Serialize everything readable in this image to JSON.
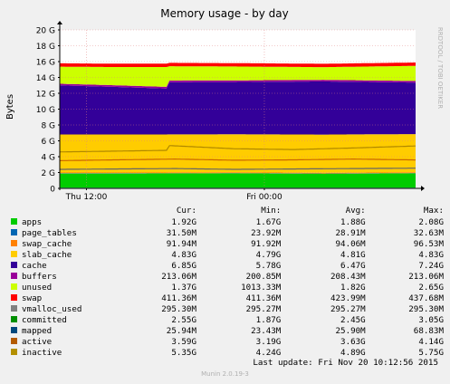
{
  "chart_data": {
    "type": "area",
    "title": "Memory usage - by day",
    "ylabel": "Bytes",
    "side_text": "RRDTOOL / TOBI OETIKER",
    "ylim": [
      0,
      20
    ],
    "yunit": "G",
    "yticks": [
      0,
      2,
      4,
      6,
      8,
      10,
      12,
      14,
      16,
      18,
      20
    ],
    "ytick_labels": [
      "0",
      "2 G",
      "4 G",
      "6 G",
      "8 G",
      "10 G",
      "12 G",
      "14 G",
      "16 G",
      "18 G",
      "20 G"
    ],
    "x_ticks": [
      {
        "label": "Thu 12:00",
        "hour": 12
      },
      {
        "label": "Fri 00:00",
        "hour": 24
      }
    ],
    "x_start_hour": 10.2,
    "x_end_hour": 34.2,
    "stack_series": [
      {
        "name": "apps",
        "color": "#00cc00",
        "x": [
          10.2,
          16,
          22,
          28,
          34.2
        ],
        "values": [
          1.88,
          1.88,
          1.9,
          1.85,
          1.9
        ]
      },
      {
        "name": "page_tables",
        "color": "#0066b3",
        "x": [
          10.2,
          34.2
        ],
        "values": [
          0.029,
          0.029
        ]
      },
      {
        "name": "swap_cache",
        "color": "#ff8000",
        "x": [
          10.2,
          34.2
        ],
        "values": [
          0.092,
          0.092
        ]
      },
      {
        "name": "slab_cache",
        "color": "#ffcc00",
        "x": [
          10.2,
          16,
          22,
          28,
          34.2
        ],
        "values": [
          4.8,
          4.8,
          4.8,
          4.82,
          4.83
        ]
      },
      {
        "name": "cache",
        "color": "#330099",
        "x": [
          10.2,
          14,
          17.4,
          17.6,
          22,
          28,
          34.2
        ],
        "values": [
          6.2,
          6.0,
          5.8,
          6.6,
          6.6,
          6.7,
          6.5
        ]
      },
      {
        "name": "buffers",
        "color": "#990099",
        "x": [
          10.2,
          34.2
        ],
        "values": [
          0.208,
          0.208
        ]
      },
      {
        "name": "unused",
        "color": "#ccff00",
        "x": [
          10.2,
          14,
          17.4,
          17.6,
          22,
          28,
          34.2
        ],
        "values": [
          2.15,
          2.3,
          2.5,
          1.8,
          1.75,
          1.6,
          1.9
        ]
      },
      {
        "name": "swap",
        "color": "#ff0000",
        "x": [
          10.2,
          34.2
        ],
        "values": [
          0.424,
          0.424
        ]
      }
    ],
    "line_series": [
      {
        "name": "committed",
        "color": "#666666",
        "x": [
          10.2,
          14,
          18,
          22,
          26,
          30,
          34.2
        ],
        "values": [
          2.4,
          2.45,
          2.5,
          2.4,
          2.45,
          2.5,
          2.55
        ]
      },
      {
        "name": "mapped",
        "color": "#8fb3e6",
        "x": [
          10.2,
          34.2
        ],
        "values": [
          0.026,
          0.026
        ]
      },
      {
        "name": "active",
        "color": "#cc6600",
        "x": [
          10.2,
          14,
          18,
          22,
          26,
          30,
          34.2
        ],
        "values": [
          3.5,
          3.6,
          3.7,
          3.55,
          3.6,
          3.7,
          3.59
        ]
      },
      {
        "name": "inactive",
        "color": "#b08800",
        "x": [
          10.2,
          14,
          17.4,
          17.6,
          22,
          26,
          30,
          34.2
        ],
        "values": [
          4.6,
          4.7,
          4.8,
          5.4,
          5.0,
          4.9,
          5.1,
          5.35
        ]
      }
    ]
  },
  "legend": {
    "headers": {
      "cur": "Cur:",
      "min": "Min:",
      "avg": "Avg:",
      "max": "Max:"
    },
    "rows": [
      {
        "name": "apps",
        "color": "#00cc00",
        "cur": "1.92G",
        "min": "1.67G",
        "avg": "1.88G",
        "max": "2.08G"
      },
      {
        "name": "page_tables",
        "color": "#0066b3",
        "cur": "31.50M",
        "min": "23.92M",
        "avg": "28.91M",
        "max": "32.63M"
      },
      {
        "name": "swap_cache",
        "color": "#ff8000",
        "cur": "91.94M",
        "min": "91.92M",
        "avg": "94.06M",
        "max": "96.53M"
      },
      {
        "name": "slab_cache",
        "color": "#ffcc00",
        "cur": "4.83G",
        "min": "4.79G",
        "avg": "4.81G",
        "max": "4.83G"
      },
      {
        "name": "cache",
        "color": "#330099",
        "cur": "6.85G",
        "min": "5.78G",
        "avg": "6.47G",
        "max": "7.24G"
      },
      {
        "name": "buffers",
        "color": "#990099",
        "cur": "213.06M",
        "min": "200.85M",
        "avg": "208.43M",
        "max": "213.06M"
      },
      {
        "name": "unused",
        "color": "#ccff00",
        "cur": "1.37G",
        "min": "1013.33M",
        "avg": "1.82G",
        "max": "2.65G"
      },
      {
        "name": "swap",
        "color": "#ff0000",
        "cur": "411.36M",
        "min": "411.36M",
        "avg": "423.99M",
        "max": "437.68M"
      },
      {
        "name": "vmalloc_used",
        "color": "#808080",
        "cur": "295.30M",
        "min": "295.27M",
        "avg": "295.27M",
        "max": "295.30M"
      },
      {
        "name": "committed",
        "color": "#008f00",
        "cur": "2.55G",
        "min": "1.87G",
        "avg": "2.45G",
        "max": "3.05G"
      },
      {
        "name": "mapped",
        "color": "#00487d",
        "cur": "25.94M",
        "min": "23.43M",
        "avg": "25.90M",
        "max": "68.83M"
      },
      {
        "name": "active",
        "color": "#b35a00",
        "cur": "3.59G",
        "min": "3.19G",
        "avg": "3.63G",
        "max": "4.14G"
      },
      {
        "name": "inactive",
        "color": "#b38f00",
        "cur": "5.35G",
        "min": "4.24G",
        "avg": "4.89G",
        "max": "5.75G"
      }
    ]
  },
  "footer": {
    "last_update": "Last update: Fri Nov 20 10:12:56 2015",
    "generator": "Munin 2.0.19-3"
  }
}
